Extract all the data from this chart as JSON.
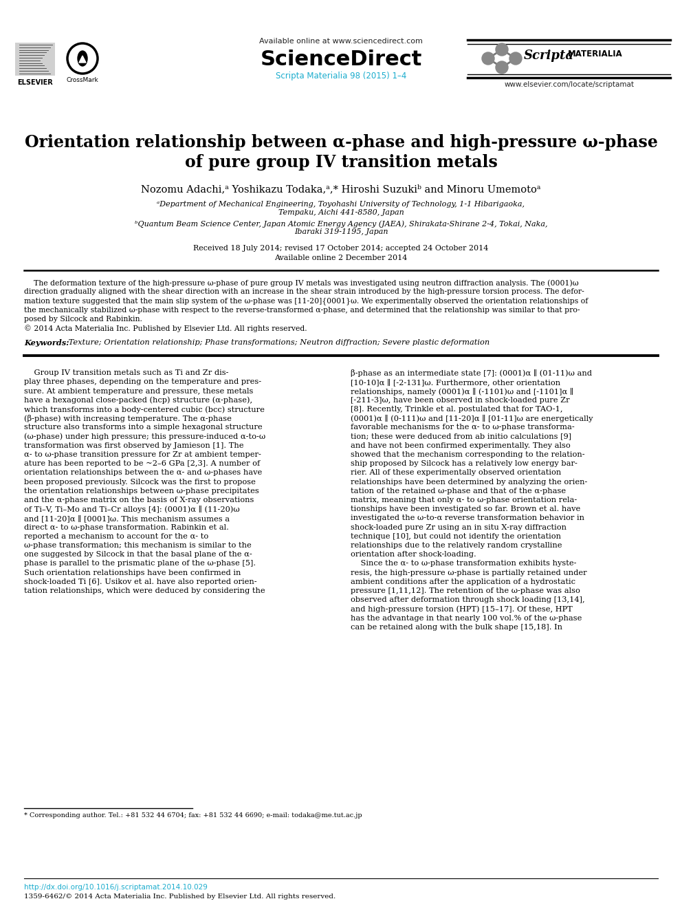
{
  "bg_color": "#ffffff",
  "title_line1": "Orientation relationship between α-phase and high-pressure ω-phase",
  "title_line2": "of pure group IV transition metals",
  "authors": "Nozomu Adachi,ᵃ Yoshikazu Todaka,ᵃ,* Hiroshi Suzukiᵇ and Minoru Umemotoᵃ",
  "affil_a": "ᵃDepartment of Mechanical Engineering, Toyohashi University of Technology, 1-1 Hibarigaoka,\nTempaku, Aichi 441-8580, Japan",
  "affil_b": "ᵇQuantum Beam Science Center, Japan Atomic Energy Agency (JAEA), Shirakata-Shirane 2-4, Tokai, Naka,\nIbaraki 319-1195, Japan",
  "received_line1": "Received 18 July 2014; revised 17 October 2014; accepted 24 October 2014",
  "received_line2": "Available online 2 December 2014",
  "header_available": "Available online at www.sciencedirect.com",
  "header_journal": "ScienceDirect",
  "header_cite": "Scripta Materialia 98 (2015) 1–4",
  "header_locate": "www.elsevier.com/locate/scriptamat",
  "cyan_color": "#1AACCD",
  "blue_link": "#1a6496",
  "footnote": "* Corresponding author. Tel.: +81 532 44 6704; fax: +81 532 44 6690; e-mail: todaka@me.tut.ac.jp",
  "doi": "http://dx.doi.org/10.1016/j.scriptamat.2014.10.029",
  "issn": "1359-6462/© 2014 Acta Materialia Inc. Published by Elsevier Ltd. All rights reserved.",
  "abstract_lines": [
    "    The deformation texture of the high-pressure ω-phase of pure group IV metals was investigated using neutron diffraction analysis. The (0001)ω",
    "direction gradually aligned with the shear direction with an increase in the shear strain introduced by the high-pressure torsion process. The defor-",
    "mation texture suggested that the main slip system of the ω-phase was [11-20]{0001}ω. We experimentally observed the orientation relationships of",
    "the mechanically stabilized ω-phase with respect to the reverse-transformed α-phase, and determined that the relationship was similar to that pro-",
    "posed by Silcock and Rabinkin."
  ],
  "copyright": "© 2014 Acta Materialia Inc. Published by Elsevier Ltd. All rights reserved.",
  "keywords_bold": "Keywords:",
  "keywords_rest": " Texture; Orientation relationship; Phase transformations; Neutron diffraction; Severe plastic deformation",
  "col1_lines": [
    "    Group IV transition metals such as Ti and Zr dis-",
    "play three phases, depending on the temperature and pres-",
    "sure. At ambient temperature and pressure, these metals",
    "have a hexagonal close-packed (hcp) structure (α-phase),",
    "which transforms into a body-centered cubic (bcc) structure",
    "(β-phase) with increasing temperature. The α-phase",
    "structure also transforms into a simple hexagonal structure",
    "(ω-phase) under high pressure; this pressure-induced α-to-ω",
    "transformation was first observed by Jamieson [1]. The",
    "α- to ω-phase transition pressure for Zr at ambient temper-",
    "ature has been reported to be ~2–6 GPa [2,3]. A number of",
    "orientation relationships between the α- and ω-phases have",
    "been proposed previously. Silcock was the first to propose",
    "the orientation relationships between ω-phase precipitates",
    "and the α-phase matrix on the basis of X-ray observations",
    "of Ti–V, Ti–Mo and Ti–Cr alloys [4]: (0001)α ∥ (11-20)ω",
    "and [11-20]α ∥ [0001]ω. This mechanism assumes a",
    "direct α- to ω-phase transformation. Rabinkin et al.",
    "reported a mechanism to account for the α- to",
    "ω-phase transformation; this mechanism is similar to the",
    "one suggested by Silcock in that the basal plane of the α-",
    "phase is parallel to the prismatic plane of the ω-phase [5].",
    "Such orientation relationships have been confirmed in",
    "shock-loaded Ti [6]. Usikov et al. have also reported orien-",
    "tation relationships, which were deduced by considering the"
  ],
  "col2_lines": [
    "β-phase as an intermediate state [7]: (0001)α ∥ (01-11)ω and",
    "[10-10]α ∥ [-2-131]ω. Furthermore, other orientation",
    "relationships, namely (0001)α ∥ (-1101)ω and [-1101]α ∥",
    "[-211-3]ω, have been observed in shock-loaded pure Zr",
    "[8]. Recently, Trinkle et al. postulated that for TAO-1,",
    "(0001)α ∥ (0-111)ω and [11-20]α ∥ [01-11]ω are energetically",
    "favorable mechanisms for the α- to ω-phase transforma-",
    "tion; these were deduced from ab initio calculations [9]",
    "and have not been confirmed experimentally. They also",
    "showed that the mechanism corresponding to the relation-",
    "ship proposed by Silcock has a relatively low energy bar-",
    "rier. All of these experimentally observed orientation",
    "relationships have been determined by analyzing the orien-",
    "tation of the retained ω-phase and that of the α-phase",
    "matrix, meaning that only α- to ω-phase orientation rela-",
    "tionships have been investigated so far. Brown et al. have",
    "investigated the ω-to-α reverse transformation behavior in",
    "shock-loaded pure Zr using an in situ X-ray diffraction",
    "technique [10], but could not identify the orientation",
    "relationships due to the relatively random crystalline",
    "orientation after shock-loading.",
    "    Since the α- to ω-phase transformation exhibits hyste-",
    "resis, the high-pressure ω-phase is partially retained under",
    "ambient conditions after the application of a hydrostatic",
    "pressure [1,11,12]. The retention of the ω-phase was also",
    "observed after deformation through shock loading [13,14],",
    "and high-pressure torsion (HPT) [15–17]. Of these, HPT",
    "has the advantage in that nearly 100 vol.% of the ω-phase",
    "can be retained along with the bulk shape [15,18]. In"
  ]
}
